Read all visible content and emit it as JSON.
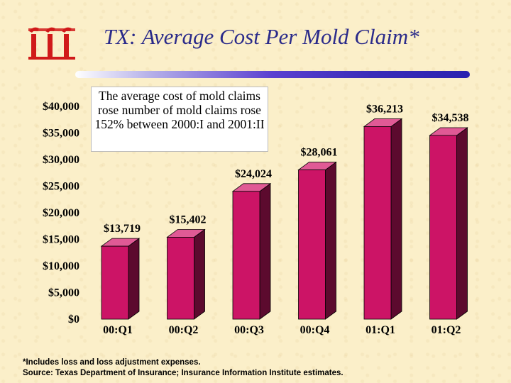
{
  "colors": {
    "bar_front": "#cc1466",
    "bar_top": "#e05a95",
    "bar_side": "#5c0a2e",
    "title_color": "#2b2b8a",
    "logo_color": "#d01a1a"
  },
  "header": {
    "title": "TX: Average Cost Per Mold Claim*",
    "logo_icon": "iii-logo-icon"
  },
  "callout": {
    "text": "The average cost of mold claims rose number of mold claims rose 152% between 2000:I and 2001:II"
  },
  "footnote": {
    "line1": "*Includes loss and loss adjustment expenses.",
    "line2": "Source: Texas Department of Insurance; Insurance Information Institute estimates."
  },
  "chart_data": {
    "type": "bar",
    "title": "TX: Average Cost Per Mold Claim*",
    "xlabel": "",
    "ylabel": "",
    "categories": [
      "00:Q1",
      "00:Q2",
      "00:Q3",
      "00:Q4",
      "01:Q1",
      "01:Q2"
    ],
    "values": [
      13719,
      15402,
      24024,
      28061,
      36213,
      34538
    ],
    "value_labels": [
      "$13,719",
      "$15,402",
      "$24,024",
      "$28,061",
      "$36,213",
      "$34,538"
    ],
    "ylim": [
      0,
      40000
    ],
    "yticks": [
      0,
      5000,
      10000,
      15000,
      20000,
      25000,
      30000,
      35000,
      40000
    ],
    "ytick_labels": [
      "$0",
      "$5,000",
      "$10,000",
      "$15,000",
      "$20,000",
      "$25,000",
      "$30,000",
      "$35,000",
      "$40,000"
    ],
    "grid": false,
    "legend": "none"
  }
}
